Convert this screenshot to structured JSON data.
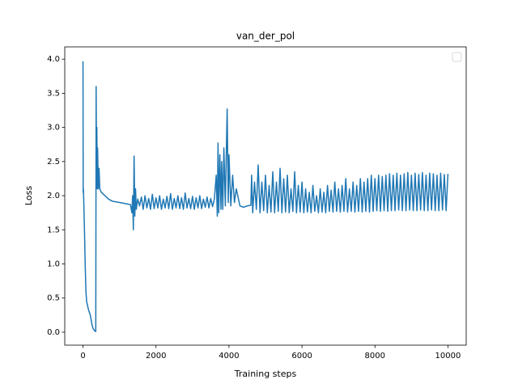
{
  "chart_data": {
    "type": "line",
    "title": "van_der_pol",
    "xlabel": "Training steps",
    "ylabel": "Loss",
    "color": "#1f77b4",
    "xlim": [
      -500,
      10500
    ],
    "xticks": [
      0,
      2000,
      4000,
      6000,
      8000,
      10000
    ],
    "ylim": [
      -0.19,
      4.18
    ],
    "yticks": [
      {
        "value": 0,
        "label": "0.0"
      },
      0.5,
      {
        "value": 1,
        "label": "1.0"
      },
      1.5,
      {
        "value": 2,
        "label": "2.0"
      },
      2.5,
      {
        "value": 3,
        "label": "3.0"
      },
      3.5,
      {
        "value": 4,
        "label": "4.0"
      }
    ],
    "legend": "upper right",
    "x": [
      0,
      5,
      10,
      20,
      40,
      60,
      80,
      100,
      150,
      200,
      250,
      280,
      320,
      350,
      360,
      370,
      380,
      390,
      400,
      420,
      440,
      460,
      500,
      600,
      700,
      800,
      1000,
      1200,
      1300,
      1340,
      1360,
      1380,
      1400,
      1420,
      1440,
      1460,
      1500,
      1550,
      1600,
      1650,
      1700,
      1750,
      1800,
      1850,
      1900,
      1950,
      2000,
      2050,
      2100,
      2150,
      2200,
      2250,
      2300,
      2350,
      2400,
      2450,
      2500,
      2550,
      2600,
      2650,
      2700,
      2750,
      2800,
      2850,
      2900,
      2950,
      3000,
      3050,
      3100,
      3150,
      3200,
      3250,
      3300,
      3350,
      3400,
      3450,
      3500,
      3550,
      3600,
      3650,
      3680,
      3700,
      3720,
      3750,
      3780,
      3800,
      3830,
      3860,
      3900,
      3950,
      3980,
      4000,
      4050,
      4100,
      4150,
      4200,
      4300,
      4400,
      4500,
      4600,
      4620,
      4650,
      4700,
      4750,
      4800,
      4850,
      4900,
      4950,
      5000,
      5050,
      5100,
      5150,
      5200,
      5250,
      5300,
      5350,
      5400,
      5450,
      5500,
      5550,
      5600,
      5650,
      5700,
      5750,
      5800,
      5850,
      5900,
      5950,
      6000,
      6050,
      6100,
      6150,
      6200,
      6250,
      6300,
      6350,
      6400,
      6450,
      6500,
      6550,
      6600,
      6650,
      6700,
      6750,
      6800,
      6850,
      6900,
      6950,
      7000,
      7050,
      7100,
      7150,
      7200,
      7250,
      7300,
      7350,
      7400,
      7450,
      7500,
      7550,
      7600,
      7650,
      7700,
      7750,
      7800,
      7850,
      7900,
      7950,
      8000,
      8050,
      8100,
      8150,
      8200,
      8250,
      8300,
      8350,
      8400,
      8450,
      8500,
      8550,
      8600,
      8650,
      8700,
      8750,
      8800,
      8850,
      8900,
      8950,
      9000,
      9050,
      9100,
      9150,
      9200,
      9250,
      9300,
      9350,
      9400,
      9450,
      9500,
      9550,
      9600,
      9650,
      9700,
      9750,
      9800,
      9850,
      9900,
      9950,
      10000
    ],
    "values": [
      3.97,
      2.05,
      2.1,
      1.95,
      1.5,
      1.0,
      0.6,
      0.45,
      0.33,
      0.25,
      0.1,
      0.05,
      0.02,
      0.01,
      3.6,
      2.3,
      3.0,
      2.1,
      2.7,
      2.1,
      2.4,
      2.1,
      2.05,
      2.0,
      1.95,
      1.92,
      1.9,
      1.88,
      1.87,
      1.75,
      2.0,
      1.5,
      2.58,
      1.7,
      2.1,
      1.8,
      1.95,
      1.85,
      1.98,
      1.8,
      2.0,
      1.82,
      1.96,
      1.8,
      2.02,
      1.81,
      1.97,
      1.82,
      2.0,
      1.8,
      1.95,
      1.82,
      1.99,
      1.81,
      2.03,
      1.8,
      1.96,
      1.82,
      2.0,
      1.81,
      1.97,
      1.8,
      2.04,
      1.82,
      1.96,
      1.81,
      1.99,
      1.8,
      1.97,
      1.82,
      2.0,
      1.81,
      1.95,
      1.83,
      1.98,
      1.82,
      1.96,
      1.84,
      1.95,
      2.3,
      1.7,
      2.77,
      1.75,
      2.6,
      1.8,
      2.5,
      1.8,
      2.7,
      1.85,
      3.27,
      1.9,
      2.6,
      1.85,
      2.3,
      1.9,
      2.1,
      1.85,
      1.83,
      1.85,
      1.86,
      2.3,
      1.75,
      2.2,
      1.8,
      2.45,
      1.75,
      2.2,
      1.78,
      2.3,
      1.75,
      2.15,
      1.76,
      2.35,
      1.75,
      2.2,
      1.77,
      2.4,
      1.75,
      2.25,
      1.76,
      2.3,
      1.75,
      2.1,
      1.77,
      2.35,
      1.75,
      2.15,
      1.76,
      2.2,
      1.75,
      2.1,
      1.76,
      2.05,
      1.75,
      2.15,
      1.77,
      2.0,
      1.75,
      2.1,
      1.76,
      2.05,
      1.75,
      2.15,
      1.77,
      2.08,
      1.76,
      2.2,
      1.77,
      2.1,
      1.76,
      2.15,
      1.77,
      2.25,
      1.76,
      2.1,
      1.77,
      2.2,
      1.76,
      2.15,
      1.77,
      2.25,
      1.76,
      2.2,
      1.77,
      2.25,
      1.76,
      2.3,
      1.77,
      2.25,
      1.78,
      2.3,
      1.77,
      2.28,
      1.78,
      2.3,
      1.77,
      2.32,
      1.78,
      2.3,
      1.78,
      2.33,
      1.79,
      2.3,
      1.78,
      2.32,
      1.78,
      2.34,
      1.79,
      2.3,
      1.78,
      2.33,
      1.78,
      2.31,
      1.79,
      2.34,
      1.78,
      2.3,
      1.78,
      2.33,
      1.79,
      2.32,
      1.78,
      2.3,
      1.78,
      2.33,
      1.79,
      2.31,
      1.78,
      2.32
    ]
  }
}
